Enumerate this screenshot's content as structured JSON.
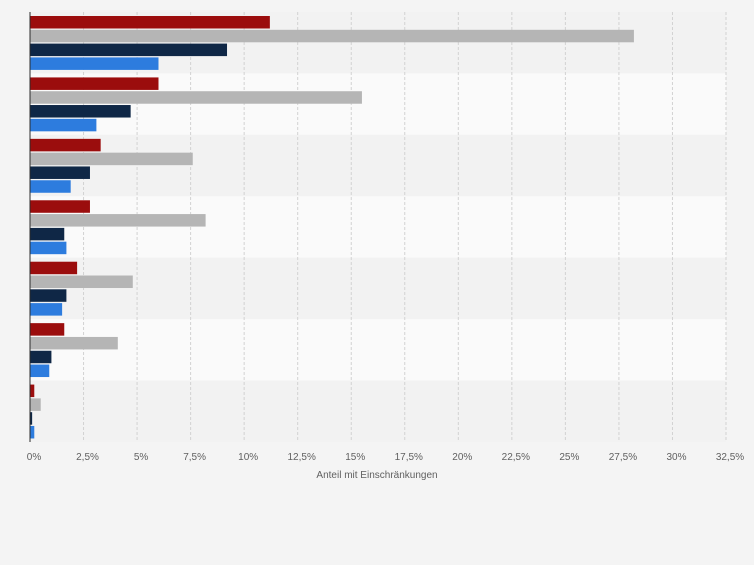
{
  "chart_data": {
    "type": "bar",
    "orientation": "horizontal",
    "xlabel": "Anteil mit Einschränkungen",
    "xlim": [
      0,
      32.5
    ],
    "ticks": [
      0,
      2.5,
      5,
      7.5,
      10,
      12.5,
      15,
      17.5,
      20,
      22.5,
      25,
      27.5,
      30,
      32.5
    ],
    "tick_labels": [
      "0%",
      "2,5%",
      "5%",
      "7,5%",
      "10%",
      "12,5%",
      "15%",
      "17,5%",
      "20%",
      "22,5%",
      "25%",
      "27,5%",
      "30%",
      "32,5%"
    ],
    "grid": true,
    "legend": "none",
    "categories": [
      "",
      "",
      "",
      "",
      "",
      "",
      ""
    ],
    "series": [
      {
        "color": "#9b0d0d",
        "values": [
          11.2,
          6.0,
          3.3,
          2.8,
          2.2,
          1.6,
          0.2
        ]
      },
      {
        "color": "#b5b5b5",
        "values": [
          28.2,
          15.5,
          7.6,
          8.2,
          4.8,
          4.1,
          0.5
        ]
      },
      {
        "color": "#0f2746",
        "values": [
          9.2,
          4.7,
          2.8,
          1.6,
          1.7,
          1.0,
          0.1
        ]
      },
      {
        "color": "#2d7cde",
        "values": [
          6.0,
          3.1,
          1.9,
          1.7,
          1.5,
          0.9,
          0.2
        ]
      }
    ]
  }
}
